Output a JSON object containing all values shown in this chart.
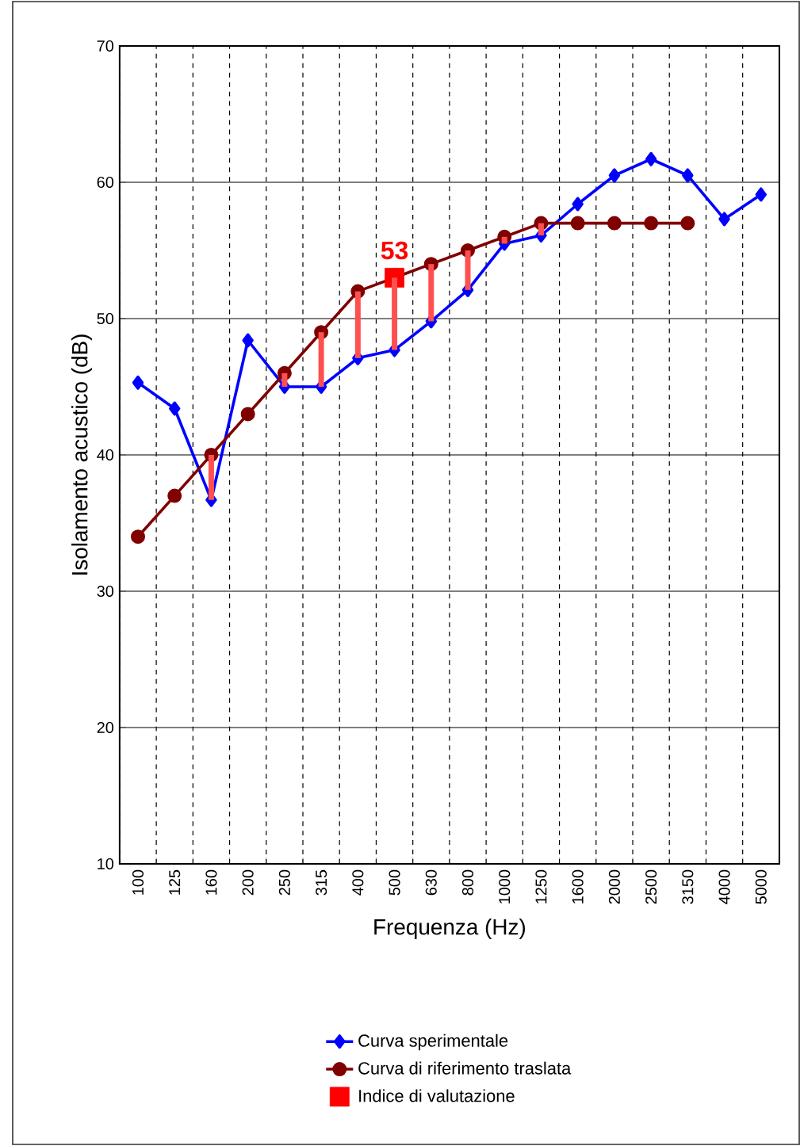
{
  "chart_data": {
    "type": "line",
    "xlabel": "Frequenza (Hz)",
    "ylabel": "Isolamento acustico (dB)",
    "categories": [
      "100",
      "125",
      "160",
      "200",
      "250",
      "315",
      "400",
      "500",
      "630",
      "800",
      "1000",
      "1250",
      "1600",
      "2000",
      "2500",
      "3150",
      "4000",
      "5000"
    ],
    "series": [
      {
        "name": "Curva sperimentale",
        "color": "#0000ff",
        "marker": "diamond",
        "values": [
          45.3,
          43.4,
          36.7,
          48.4,
          45.0,
          45.0,
          47.1,
          47.7,
          49.8,
          52.1,
          55.5,
          56.1,
          58.4,
          60.5,
          61.7,
          60.5,
          57.3,
          59.1
        ]
      },
      {
        "name": "Curva di riferimento traslata",
        "color": "#800000",
        "marker": "circle",
        "values": [
          34,
          37,
          40,
          43,
          46,
          49,
          52,
          53,
          54,
          55,
          56,
          57,
          57,
          57,
          57,
          57,
          null,
          null
        ]
      },
      {
        "type": "bar",
        "color": "#ff5050",
        "base": [
          null,
          null,
          36.7,
          null,
          45.0,
          45.0,
          47.1,
          47.7,
          49.8,
          52.1,
          55.5,
          56.1,
          null,
          null,
          null,
          null,
          null,
          null
        ],
        "values": [
          null,
          null,
          3.3,
          null,
          1.0,
          4.0,
          4.9,
          5.3,
          4.2,
          2.9,
          0.5,
          0.9,
          null,
          null,
          null,
          null,
          null,
          null
        ]
      },
      {
        "name": "Indice di valutazione",
        "type": "scatter",
        "color": "#ff0000",
        "marker": "square",
        "values": [
          null,
          null,
          null,
          null,
          null,
          null,
          null,
          53,
          null,
          null,
          null,
          null,
          null,
          null,
          null,
          null,
          null,
          null
        ],
        "value_labels": [
          null,
          null,
          null,
          null,
          null,
          null,
          null,
          "53",
          null,
          null,
          null,
          null,
          null,
          null,
          null,
          null,
          null,
          null
        ]
      }
    ],
    "ylim": [
      10,
      70
    ],
    "yticks": [
      10,
      20,
      30,
      40,
      50,
      60,
      70
    ],
    "grid": true,
    "legend": "bottom",
    "line_style": "solid"
  }
}
